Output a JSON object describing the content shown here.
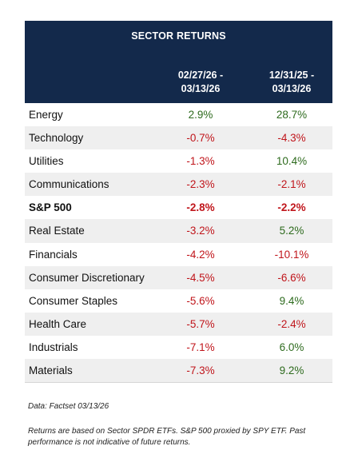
{
  "table": {
    "title": "SECTOR RETURNS",
    "col1_header_line1": "02/27/26 -",
    "col1_header_line2": "03/13/26",
    "col2_header_line1": "12/31/25 -",
    "col2_header_line2": "03/13/26",
    "rows": [
      {
        "name": "Energy",
        "v1": "2.9%",
        "v2": "28.7%",
        "bold": false
      },
      {
        "name": "Technology",
        "v1": "-0.7%",
        "v2": "-4.3%",
        "bold": false
      },
      {
        "name": "Utilities",
        "v1": "-1.3%",
        "v2": "10.4%",
        "bold": false
      },
      {
        "name": "Communications",
        "v1": "-2.3%",
        "v2": "-2.1%",
        "bold": false
      },
      {
        "name": "S&P 500",
        "v1": "-2.8%",
        "v2": "-2.2%",
        "bold": true
      },
      {
        "name": "Real Estate",
        "v1": "-3.2%",
        "v2": "5.2%",
        "bold": false
      },
      {
        "name": "Financials",
        "v1": "-4.2%",
        "v2": "-10.1%",
        "bold": false
      },
      {
        "name": "Consumer Discretionary",
        "v1": "-4.5%",
        "v2": "-6.6%",
        "bold": false
      },
      {
        "name": "Consumer Staples",
        "v1": "-5.6%",
        "v2": "9.4%",
        "bold": false
      },
      {
        "name": "Health Care",
        "v1": "-5.7%",
        "v2": "-2.4%",
        "bold": false
      },
      {
        "name": "Industrials",
        "v1": "-7.1%",
        "v2": "6.0%",
        "bold": false
      },
      {
        "name": "Materials",
        "v1": "-7.3%",
        "v2": "9.2%",
        "bold": false
      }
    ]
  },
  "notes": {
    "source": "Data: Factset   03/13/26",
    "disclaimer": "Returns are based on Sector SPDR  ETFs. S&P 500 proxied by SPY ETF. Past performance is not indicative of future returns."
  },
  "colors": {
    "header_bg": "#13294b",
    "positive": "#2e6b1e",
    "negative": "#c0151b",
    "alt_row": "#efefef"
  }
}
